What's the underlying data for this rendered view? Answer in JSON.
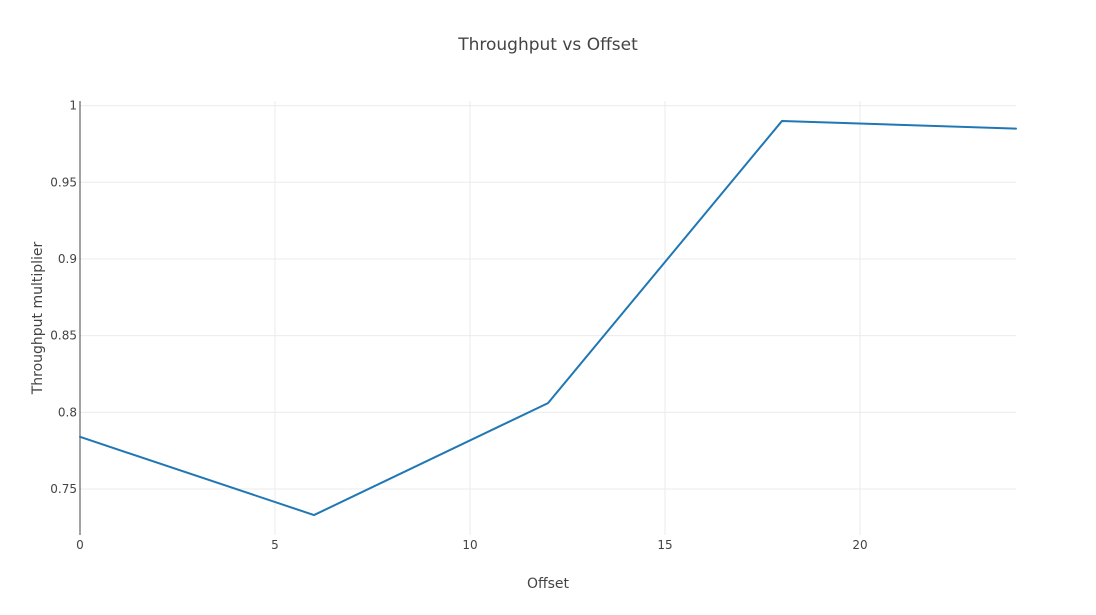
{
  "chart_data": {
    "type": "line",
    "title": "Throughput vs Offset",
    "xlabel": "Offset",
    "ylabel": "Throughput multiplier",
    "xlim": [
      0,
      24
    ],
    "ylim": [
      0.72,
      1.003
    ],
    "x_ticks": [
      0,
      5,
      10,
      15,
      20
    ],
    "y_ticks": [
      0.75,
      0.8,
      0.85,
      0.9,
      0.95,
      1
    ],
    "x_tick_labels": [
      "0",
      "5",
      "10",
      "15",
      "20"
    ],
    "y_tick_labels": [
      "0.75",
      "0.8",
      "0.85",
      "0.9",
      "0.95",
      "1"
    ],
    "grid": true,
    "series": [
      {
        "color": "#1f77b4",
        "x": [
          0,
          6,
          12,
          18,
          24
        ],
        "y": [
          0.784,
          0.733,
          0.806,
          0.99,
          0.985
        ]
      }
    ]
  }
}
